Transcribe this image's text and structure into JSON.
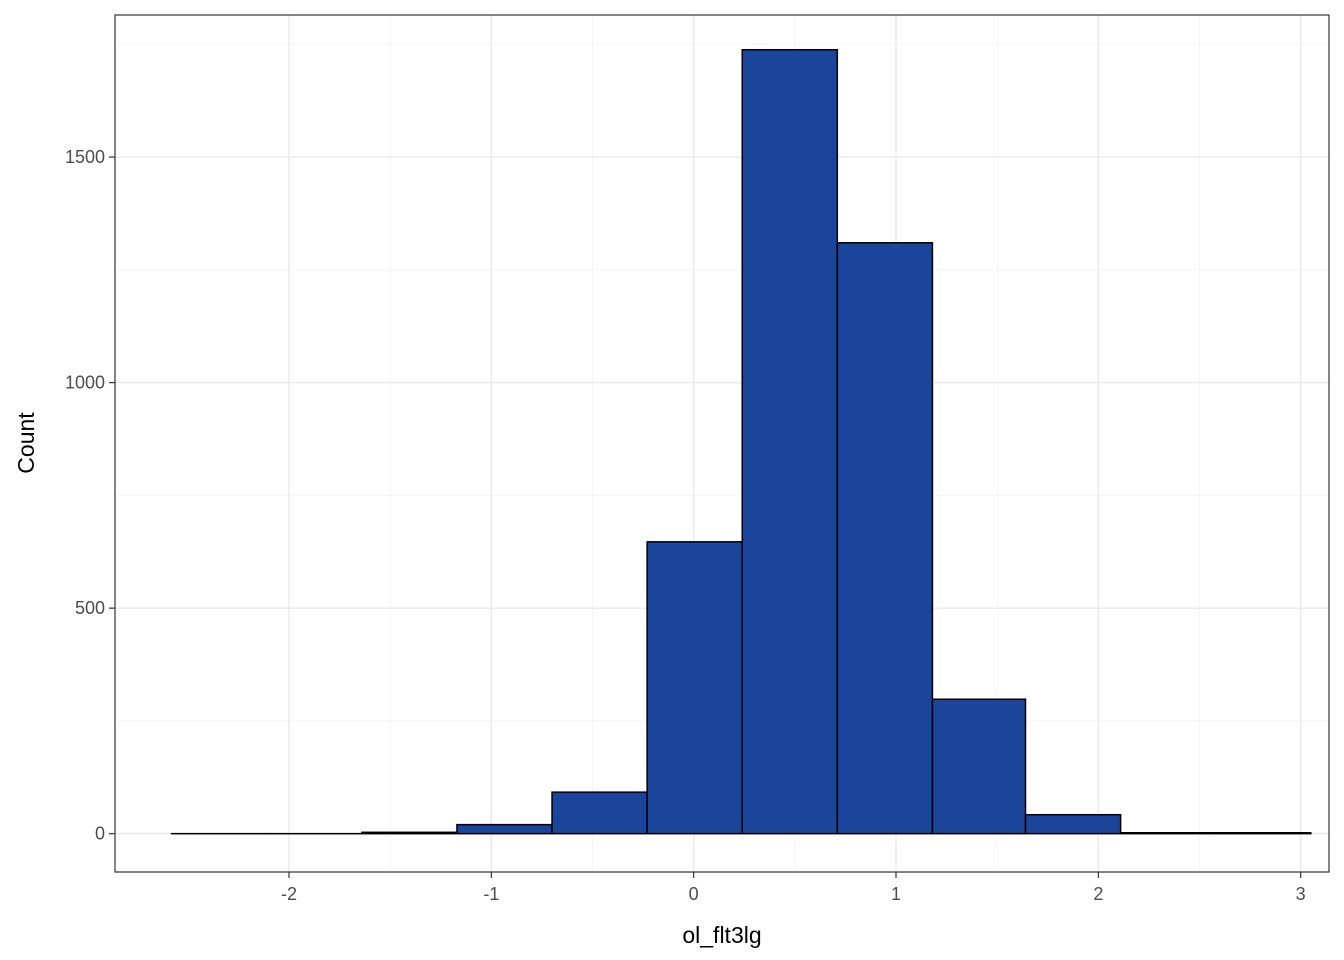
{
  "chart_data": {
    "type": "bar",
    "subtype": "histogram",
    "xlabel": "ol_flt3lg",
    "ylabel": "Count",
    "xlim": [
      -2.86,
      3.14
    ],
    "ylim": [
      -85,
      1815
    ],
    "x_ticks": [
      -2,
      -1,
      0,
      1,
      2,
      3
    ],
    "x_tick_labels": [
      "-2",
      "-1",
      "0",
      "1",
      "2",
      "3"
    ],
    "y_ticks": [
      0,
      500,
      1000,
      1500
    ],
    "y_tick_labels": [
      "0",
      "500",
      "1000",
      "1500"
    ],
    "bins": [
      {
        "x0": -2.58,
        "x1": -2.11,
        "count": 0
      },
      {
        "x0": -2.11,
        "x1": -1.64,
        "count": 0
      },
      {
        "x0": -1.64,
        "x1": -1.17,
        "count": 3
      },
      {
        "x0": -1.17,
        "x1": -0.7,
        "count": 20
      },
      {
        "x0": -0.7,
        "x1": -0.23,
        "count": 92
      },
      {
        "x0": -0.23,
        "x1": 0.24,
        "count": 647
      },
      {
        "x0": 0.24,
        "x1": 0.71,
        "count": 1738
      },
      {
        "x0": 0.71,
        "x1": 1.18,
        "count": 1310
      },
      {
        "x0": 1.18,
        "x1": 1.64,
        "count": 298
      },
      {
        "x0": 1.64,
        "x1": 2.11,
        "count": 42
      },
      {
        "x0": 2.11,
        "x1": 2.58,
        "count": 2
      },
      {
        "x0": 2.58,
        "x1": 3.05,
        "count": 2
      }
    ],
    "grid": true,
    "legend": "none"
  },
  "colors": {
    "bar_fill": "#1a459b",
    "bar_outline": "#000000",
    "grid_major": "#ebebeb",
    "grid_minor": "#f4f4f4",
    "panel_border": "#333333",
    "tick_label": "#4d4d4d"
  }
}
